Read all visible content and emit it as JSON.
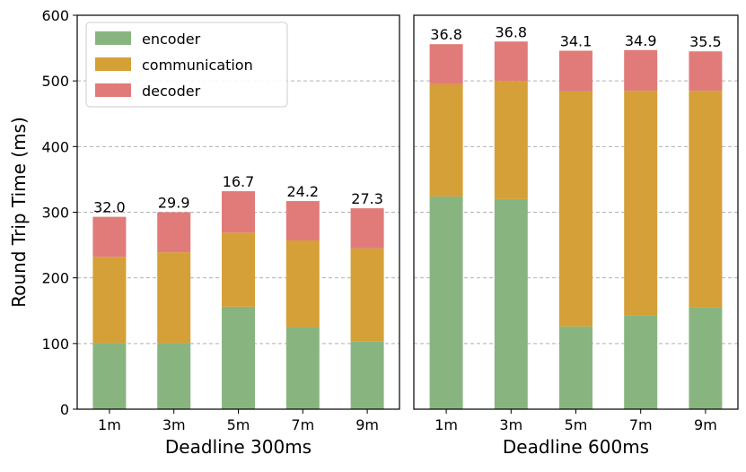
{
  "chart_data": [
    {
      "type": "bar",
      "stacked": true,
      "xlabel": "Deadline 300ms",
      "ylabel": "Round Trip Time (ms)",
      "ylim": [
        0,
        600
      ],
      "yticks": [
        0,
        100,
        200,
        300,
        400,
        500,
        600
      ],
      "grid": "y-dashed",
      "legend_position": "top-left",
      "categories": [
        "1m",
        "3m",
        "5m",
        "7m",
        "9m"
      ],
      "series": [
        {
          "name": "encoder",
          "color": "#88b57f",
          "values": [
            101,
            101,
            156,
            125,
            103
          ]
        },
        {
          "name": "communication",
          "color": "#d4a037",
          "values": [
            131,
            138,
            113,
            132,
            142
          ]
        },
        {
          "name": "decoder",
          "color": "#e07b7a",
          "values": [
            61,
            61,
            63,
            60,
            61
          ]
        }
      ],
      "bar_labels": [
        "32.0",
        "29.9",
        "16.7",
        "24.2",
        "27.3"
      ]
    },
    {
      "type": "bar",
      "stacked": true,
      "xlabel": "Deadline 600ms",
      "ylabel": "",
      "ylim": [
        0,
        600
      ],
      "grid": "y-dashed",
      "categories": [
        "1m",
        "3m",
        "5m",
        "7m",
        "9m"
      ],
      "series": [
        {
          "name": "encoder",
          "color": "#88b57f",
          "values": [
            324,
            320,
            126,
            143,
            155
          ]
        },
        {
          "name": "communication",
          "color": "#d4a037",
          "values": [
            171,
            180,
            358,
            342,
            330
          ]
        },
        {
          "name": "decoder",
          "color": "#e07b7a",
          "values": [
            61,
            60,
            62,
            62,
            60
          ]
        }
      ],
      "bar_labels": [
        "36.8",
        "36.8",
        "34.1",
        "34.9",
        "35.5"
      ]
    }
  ]
}
